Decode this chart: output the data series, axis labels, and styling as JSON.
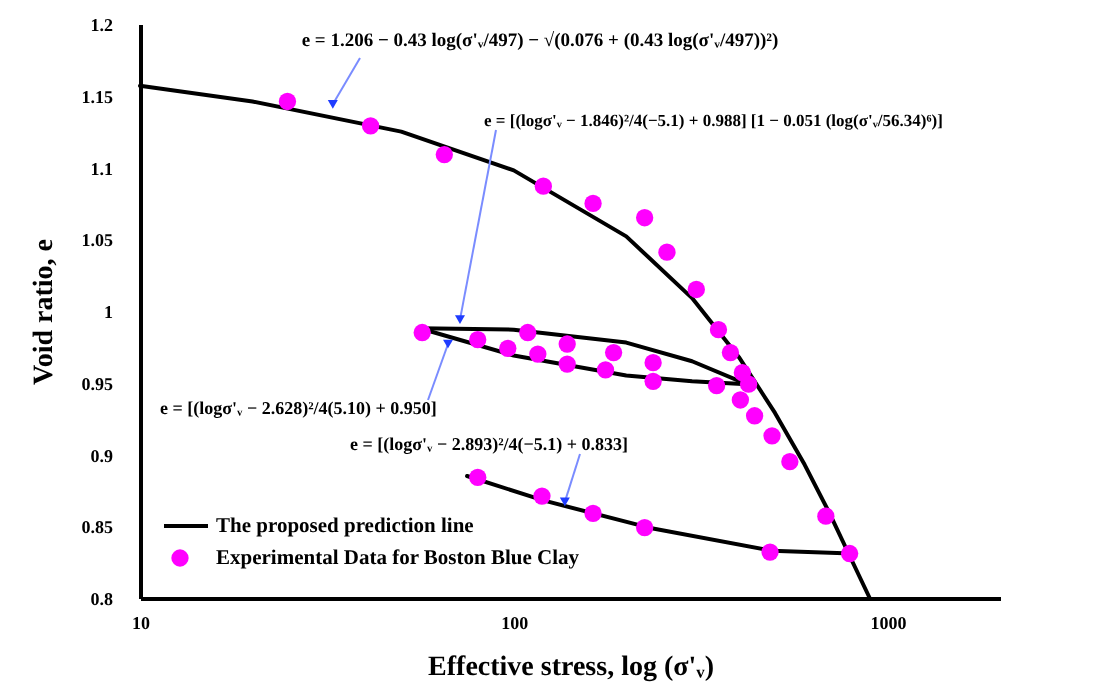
{
  "chart_data": {
    "type": "line",
    "xlabel": "Effective stress, log (σ'ᵥ)",
    "ylabel": "Void ratio, e",
    "log": "x",
    "xlim": [
      10,
      2000
    ],
    "xticks": [
      10,
      100,
      1000
    ],
    "ylim": [
      0.8,
      1.2
    ],
    "yticks": [
      {
        "value": 0.8,
        "label": "0.8"
      },
      0.85,
      {
        "value": 0.9,
        "label": "0.9"
      },
      0.95,
      {
        "value": 1,
        "label": "1"
      },
      1.05,
      {
        "value": 1.1,
        "label": "1.1"
      },
      1.15,
      {
        "value": 1.2,
        "label": "1.2"
      }
    ],
    "grid": false,
    "legend": "bottom left",
    "series": [
      {
        "name": "The proposed prediction line",
        "type": "line",
        "color": "#000000",
        "x": [
          10,
          20,
          50,
          100,
          200,
          300,
          400,
          500,
          600,
          700,
          800,
          896
        ],
        "values": [
          1.157,
          1.146,
          1.125,
          1.098,
          1.052,
          1.009,
          0.968,
          0.929,
          0.893,
          0.859,
          0.827,
          0.8
        ]
      },
      {
        "type": "line",
        "color": "#000000",
        "x": [
          56,
          100,
          200,
          300,
          420
        ],
        "values": [
          0.988,
          0.987,
          0.978,
          0.965,
          0.949
        ]
      },
      {
        "type": "line",
        "color": "#000000",
        "x": [
          56,
          100,
          200,
          300,
          420
        ],
        "values": [
          0.988,
          0.969,
          0.955,
          0.951,
          0.949
        ]
      },
      {
        "type": "line",
        "color": "#000000",
        "x": [
          75,
          120,
          230,
          490,
          800
        ],
        "values": [
          0.885,
          0.868,
          0.849,
          0.833,
          0.831
        ]
      },
      {
        "name": "Experimental Data  for Boston Blue Clay",
        "type": "scatter",
        "color": "#ff00ff",
        "x": [
          24.8,
          41.4,
          65.2,
          120,
          163,
          224,
          257,
          308,
          353,
          380,
          409,
          425,
          404,
          441,
          491,
          548,
          684,
          792,
          56.9,
          80.1,
          109,
          96.4,
          116,
          139,
          185,
          139,
          176,
          236,
          236,
          349,
          80.1,
          119,
          163,
          224,
          485
        ],
        "values": [
          1.146,
          1.129,
          1.109,
          1.087,
          1.075,
          1.065,
          1.041,
          1.015,
          0.987,
          0.971,
          0.957,
          0.949,
          0.938,
          0.927,
          0.913,
          0.895,
          0.857,
          0.831,
          0.985,
          0.98,
          0.985,
          0.974,
          0.97,
          0.977,
          0.971,
          0.963,
          0.959,
          0.964,
          0.951,
          0.948,
          0.884,
          0.871,
          0.859,
          0.849,
          0.832
        ]
      }
    ],
    "annotations": [
      {
        "text": "e = 1.206 − 0.43 log(σ'ᵥ/497) − √(0.076 + (0.43 log(σ'ᵥ/497))²)",
        "x": 32.8,
        "y": 1.144
      },
      {
        "text": "e = [(logσ'ᵥ − 1.846)²/4(−5.1) + 0.988] [1 − 0.051 (log(σ'ᵥ/56.34)⁶)]",
        "x": 71.8,
        "y": 0.994
      },
      {
        "text": "e = [(logσ'ᵥ − 2.628)²/4(5.10) + 0.950]",
        "x": 66.7,
        "y": 0.977
      },
      {
        "text": "e = [(logσ'ᵥ − 2.893)²/4(−5.1) + 0.833]",
        "x": 137,
        "y": 0.867
      }
    ]
  }
}
